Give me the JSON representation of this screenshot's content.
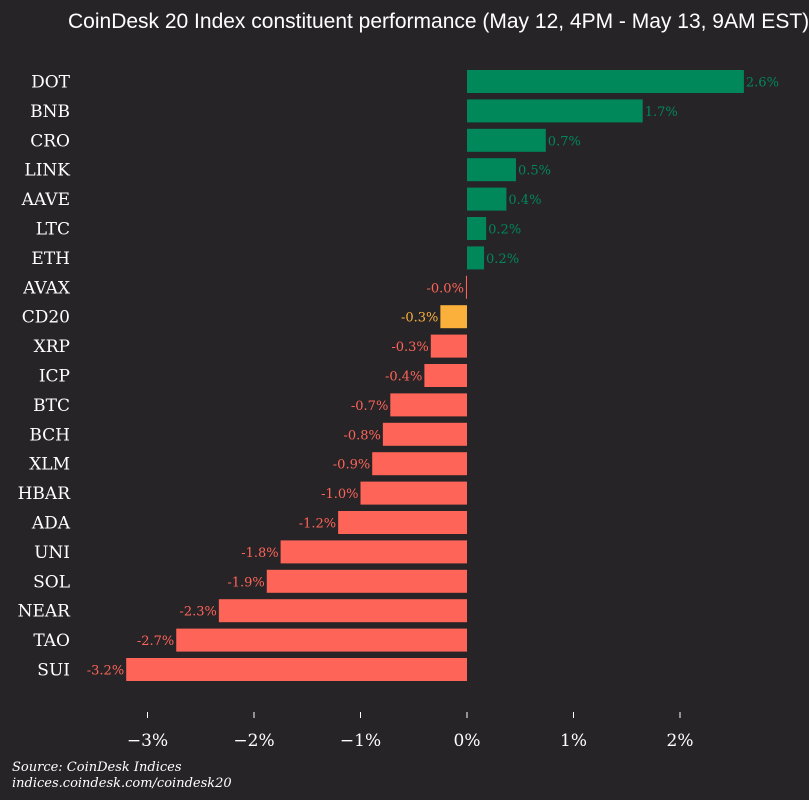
{
  "chart_data": {
    "type": "bar",
    "orientation": "horizontal",
    "title": "CoinDesk 20 Index constituent performance (May 12, 4PM - May 13, 9AM EST)",
    "categories": [
      "DOT",
      "BNB",
      "CRO",
      "LINK",
      "AAVE",
      "LTC",
      "ETH",
      "AVAX",
      "CD20",
      "XRP",
      "ICP",
      "BTC",
      "BCH",
      "XLM",
      "HBAR",
      "ADA",
      "UNI",
      "SOL",
      "NEAR",
      "TAO",
      "SUI"
    ],
    "values": [
      2.6,
      1.65,
      0.74,
      0.46,
      0.37,
      0.18,
      0.16,
      -0.01,
      -0.25,
      -0.34,
      -0.4,
      -0.72,
      -0.79,
      -0.89,
      -1.0,
      -1.21,
      -1.75,
      -1.88,
      -2.33,
      -2.73,
      -3.2
    ],
    "data_labels": [
      "2.6%",
      "1.7%",
      "0.7%",
      "0.5%",
      "0.4%",
      "0.2%",
      "0.2%",
      "-0.0%",
      "-0.3%",
      "-0.3%",
      "-0.4%",
      "-0.7%",
      "-0.8%",
      "-0.9%",
      "-1.0%",
      "-1.2%",
      "-1.8%",
      "-1.9%",
      "-2.3%",
      "-2.7%",
      "-3.2%"
    ],
    "highlight": "CD20",
    "xlim": [
      -3.6,
      2.6
    ],
    "xticks": [
      -3,
      -2,
      -1,
      0,
      1,
      2
    ],
    "xtick_labels": [
      "−3%",
      "−2%",
      "−1%",
      "0%",
      "1%",
      "2%"
    ],
    "xlabel": "",
    "ylabel": "",
    "grid": false,
    "colors": {
      "positive": "#00875a",
      "negative": "#ff6459",
      "highlight": "#fbb03b",
      "background": "#262427",
      "text": "#ffffff"
    }
  },
  "source": {
    "line1": "Source: CoinDesk Indices",
    "line2": "indices.coindesk.com/coindesk20"
  }
}
